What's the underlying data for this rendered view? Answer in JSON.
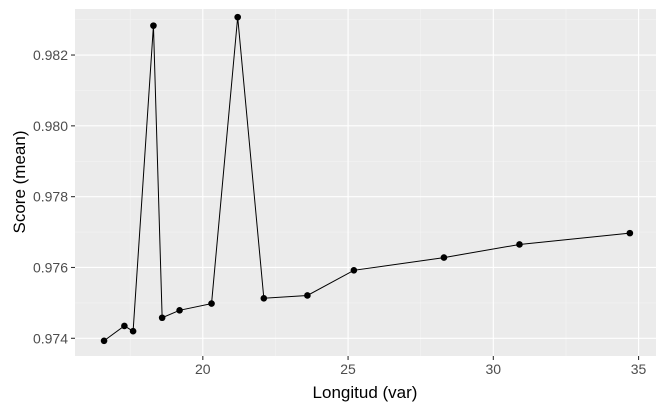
{
  "chart_data": {
    "type": "line",
    "title": "",
    "xlabel": "Longitud (var)",
    "ylabel": "Score (mean)",
    "xlim": [
      15.6,
      35.6
    ],
    "ylim": [
      0.9735,
      0.9833
    ],
    "x_ticks": [
      20,
      25,
      30,
      35
    ],
    "y_ticks": [
      0.974,
      0.976,
      0.978,
      0.98,
      0.982
    ],
    "y_tick_labels": [
      "0.974",
      "0.976",
      "0.978",
      "0.980",
      "0.982"
    ],
    "grid": true,
    "legend": "none",
    "series": [
      {
        "x": [
          16.6,
          17.3,
          17.6,
          18.3,
          18.6,
          19.2,
          20.3,
          21.2,
          22.1,
          23.6,
          25.2,
          28.3,
          30.9,
          34.7
        ],
        "y": [
          0.97393,
          0.97435,
          0.9742,
          0.98283,
          0.97458,
          0.97479,
          0.97498,
          0.98307,
          0.97513,
          0.97521,
          0.97592,
          0.97628,
          0.97665,
          0.97697
        ]
      }
    ]
  },
  "colors": {
    "panel_background": "#ebebeb",
    "grid_major": "#ffffff",
    "grid_minor": "#f4f4f4",
    "line": "#000000",
    "points": "#000000"
  }
}
